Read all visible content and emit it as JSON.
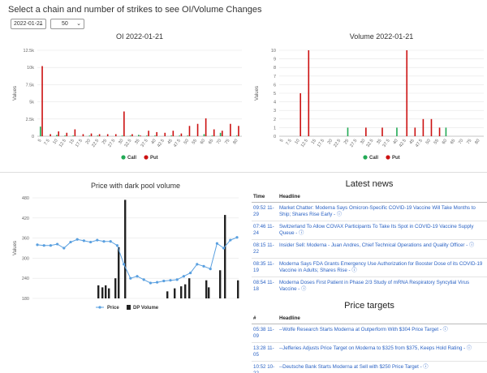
{
  "header": {
    "title": "Select a chain and number of strikes to see OI/Volume Changes"
  },
  "controls": {
    "date_value": "2022-01-21",
    "strikes_value": "50"
  },
  "colors": {
    "call": "#22aa55",
    "put": "#cc1111",
    "price": "#5aa0e0",
    "dp": "#222222"
  },
  "news": {
    "title": "Latest news",
    "col_time": "Time",
    "col_headline": "Headline",
    "rows": [
      {
        "time": "09:52 11-29",
        "headline": "Market Chatter: Moderna Says Omicron-Specific COVID-19 Vaccine Will Take Months to Ship; Shares Rise Early -"
      },
      {
        "time": "07:46 11-24",
        "headline": "Switzerland To Allow COVAX Participants To Take Its Spot in COVID-19 Vaccine Supply Queue -"
      },
      {
        "time": "08:15 11-22",
        "headline": "Insider Sell: Moderna - Juan Andres, Chief Technical Operations and Quality Officer -"
      },
      {
        "time": "08:35 11-19",
        "headline": "Moderna Says FDA Grants Emergency Use Authorization for Booster Dose of its COVID-19 Vaccine in Adults; Shares Rise -"
      },
      {
        "time": "08:54 11-18",
        "headline": "Moderna Doses First Patient in Phase 2/3 Study of mRNA Respiratory Syncytial Virus Vaccine -"
      }
    ]
  },
  "targets": {
    "title": "Price targets",
    "col_num": "#",
    "col_headline": "Headline",
    "rows": [
      {
        "time": "05:38 11-09",
        "headline": "--Wolfe Research Starts Moderna at Outperform With $304 Price Target -"
      },
      {
        "time": "13:28 11-05",
        "headline": "--Jefferies Adjusts Price Target on Moderna to $325 from $375, Keeps Hold Rating -"
      },
      {
        "time": "10:52 10-22",
        "headline": "--Deutsche Bank Starts Moderna at Sell with $250 Price Target -"
      }
    ]
  },
  "chart_data": [
    {
      "type": "bar",
      "title": "OI 2022-01-21",
      "ylabel": "Values",
      "ylim": [
        0,
        12500
      ],
      "yticks": [
        "0",
        "2.5k",
        "5k",
        "7.5k",
        "10k",
        "12.5k"
      ],
      "categories": [
        "5",
        "7.5",
        "10",
        "12.5",
        "15",
        "17.5",
        "20",
        "22.5",
        "25",
        "27.5",
        "30",
        "32.5",
        "35",
        "37.5",
        "40",
        "42.5",
        "45",
        "47.5",
        "50",
        "55",
        "60",
        "65",
        "70",
        "75",
        "80"
      ],
      "series": [
        {
          "name": "Call",
          "values": [
            1400,
            0,
            200,
            100,
            100,
            0,
            100,
            100,
            0,
            0,
            100,
            100,
            200,
            100,
            100,
            0,
            100,
            100,
            100,
            0,
            300,
            100,
            500,
            0,
            100
          ]
        },
        {
          "name": "Put",
          "values": [
            10200,
            300,
            700,
            500,
            1000,
            300,
            400,
            300,
            300,
            300,
            3600,
            300,
            100,
            800,
            600,
            500,
            800,
            400,
            1500,
            1800,
            2600,
            1000,
            800,
            1800,
            1500
          ]
        }
      ],
      "legend": [
        "Call",
        "Put"
      ]
    },
    {
      "type": "bar",
      "title": "Volume 2022-01-21",
      "ylabel": "Values",
      "ylim": [
        0,
        10
      ],
      "yticks": [
        "0",
        "1",
        "2",
        "3",
        "4",
        "5",
        "6",
        "7",
        "8",
        "9",
        "10"
      ],
      "categories": [
        "5",
        "7.5",
        "10",
        "12.5",
        "15",
        "17.5",
        "20",
        "22.5",
        "25",
        "27.5",
        "30",
        "32.5",
        "35",
        "37.5",
        "40",
        "42.5",
        "45",
        "47.5",
        "50",
        "55",
        "60",
        "65",
        "70",
        "75",
        "80"
      ],
      "series": [
        {
          "name": "Call",
          "values": [
            0,
            0,
            0,
            0,
            0,
            0,
            0,
            0,
            1,
            0,
            0,
            0,
            0,
            0,
            1,
            0,
            0,
            0,
            0,
            0,
            1,
            0,
            0,
            0,
            0
          ]
        },
        {
          "name": "Put",
          "values": [
            0,
            0,
            5,
            10,
            0,
            0,
            0,
            0,
            0,
            0,
            1,
            0,
            1,
            0,
            0,
            10,
            1,
            2,
            2,
            1,
            0,
            0,
            0,
            0,
            0
          ]
        }
      ],
      "legend": [
        "Call",
        "Put"
      ]
    },
    {
      "type": "line",
      "title": "Price with dark pool volume",
      "ylabel": "Values",
      "ylim": [
        180,
        480
      ],
      "yticks": [
        "180",
        "240",
        "300",
        "360",
        "420",
        "480"
      ],
      "series": [
        {
          "name": "Price",
          "values": [
            340,
            338,
            338,
            342,
            330,
            348,
            356,
            352,
            348,
            354,
            350,
            350,
            338,
            282,
            240,
            246,
            236,
            226,
            228,
            232,
            234,
            236,
            246,
            256,
            282,
            276,
            268,
            344,
            330,
            354,
            362
          ]
        },
        {
          "name": "DP Volume",
          "values": [
            0,
            0,
            0,
            0,
            0,
            0,
            0,
            0,
            0,
            0,
            0,
            0,
            0,
            0,
            0,
            0,
            0,
            0,
            0,
            0,
            0,
            0,
            0,
            0,
            0,
            0,
            0,
            0,
            0,
            0,
            0
          ]
        }
      ],
      "dp_bars": [
        0,
        0,
        0,
        0,
        0,
        0,
        0,
        0,
        0,
        0,
        0,
        0,
        0,
        0,
        0,
        0,
        0,
        0,
        0,
        0,
        0,
        0,
        0,
        0,
        0,
        0,
        0,
        0,
        0,
        0,
        0
      ],
      "legend": [
        "Price",
        "DP Volume"
      ]
    }
  ]
}
